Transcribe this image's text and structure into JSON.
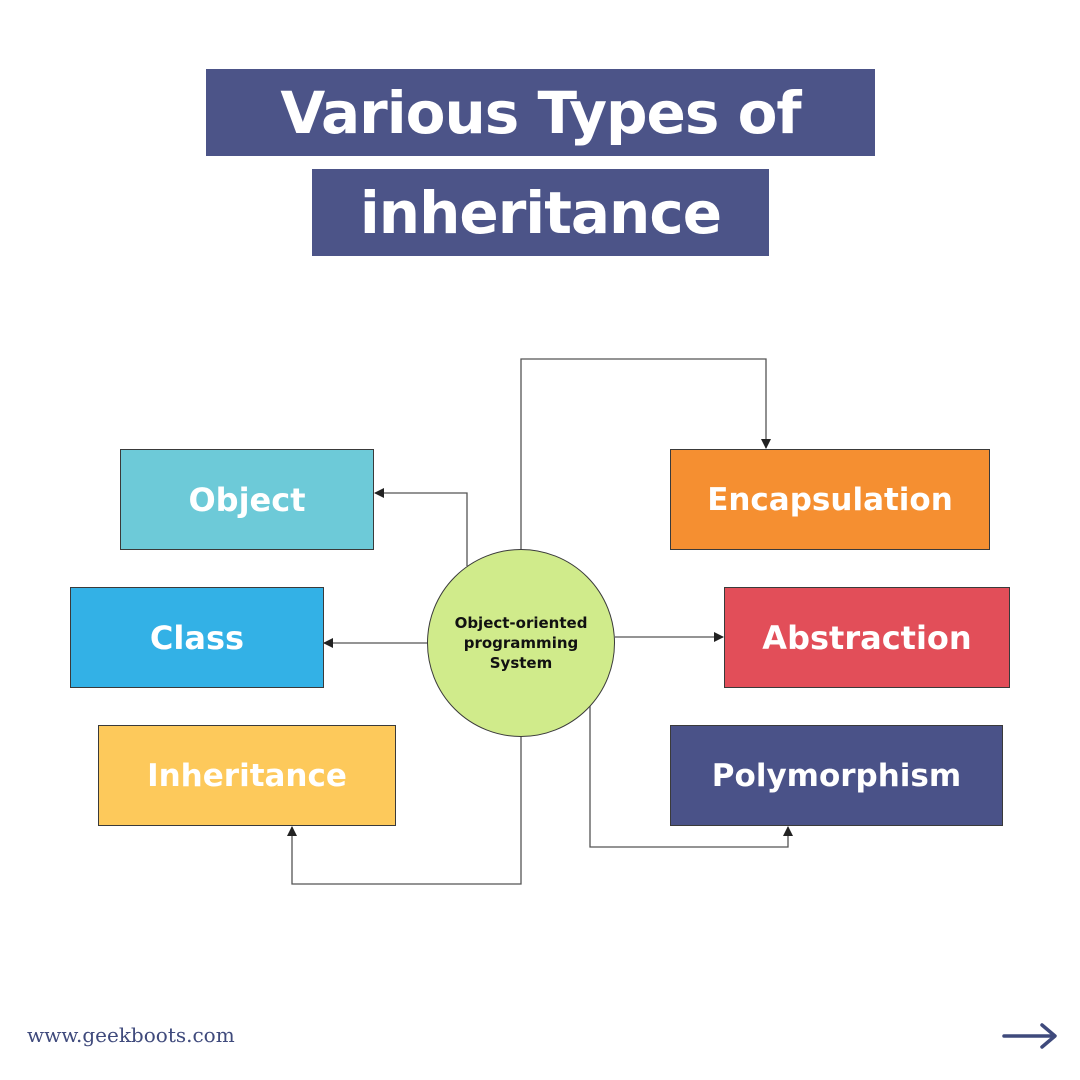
{
  "title": {
    "line1": "Various Types of",
    "line2": "inheritance"
  },
  "center": {
    "line1": "Object-oriented",
    "line2": "programming",
    "line3": "System",
    "color": "#d0eb8b"
  },
  "nodes": [
    {
      "id": "object",
      "label": "Object",
      "color": "#6dcad8"
    },
    {
      "id": "class",
      "label": "Class",
      "color": "#33b1e6"
    },
    {
      "id": "inheritance",
      "label": "Inheritance",
      "color": "#fdc95b"
    },
    {
      "id": "encapsulation",
      "label": "Encapsulation",
      "color": "#f58f31"
    },
    {
      "id": "abstraction",
      "label": "Abstraction",
      "color": "#e24e59"
    },
    {
      "id": "polymorphism",
      "label": "Polymorphism",
      "color": "#4a5288"
    }
  ],
  "footer": {
    "url": "www.geekboots.com",
    "next_icon": "arrow-right-icon"
  },
  "colors": {
    "title_bg": "#4c5488",
    "footer_text": "#3f4a7c",
    "connector": "#333333"
  }
}
